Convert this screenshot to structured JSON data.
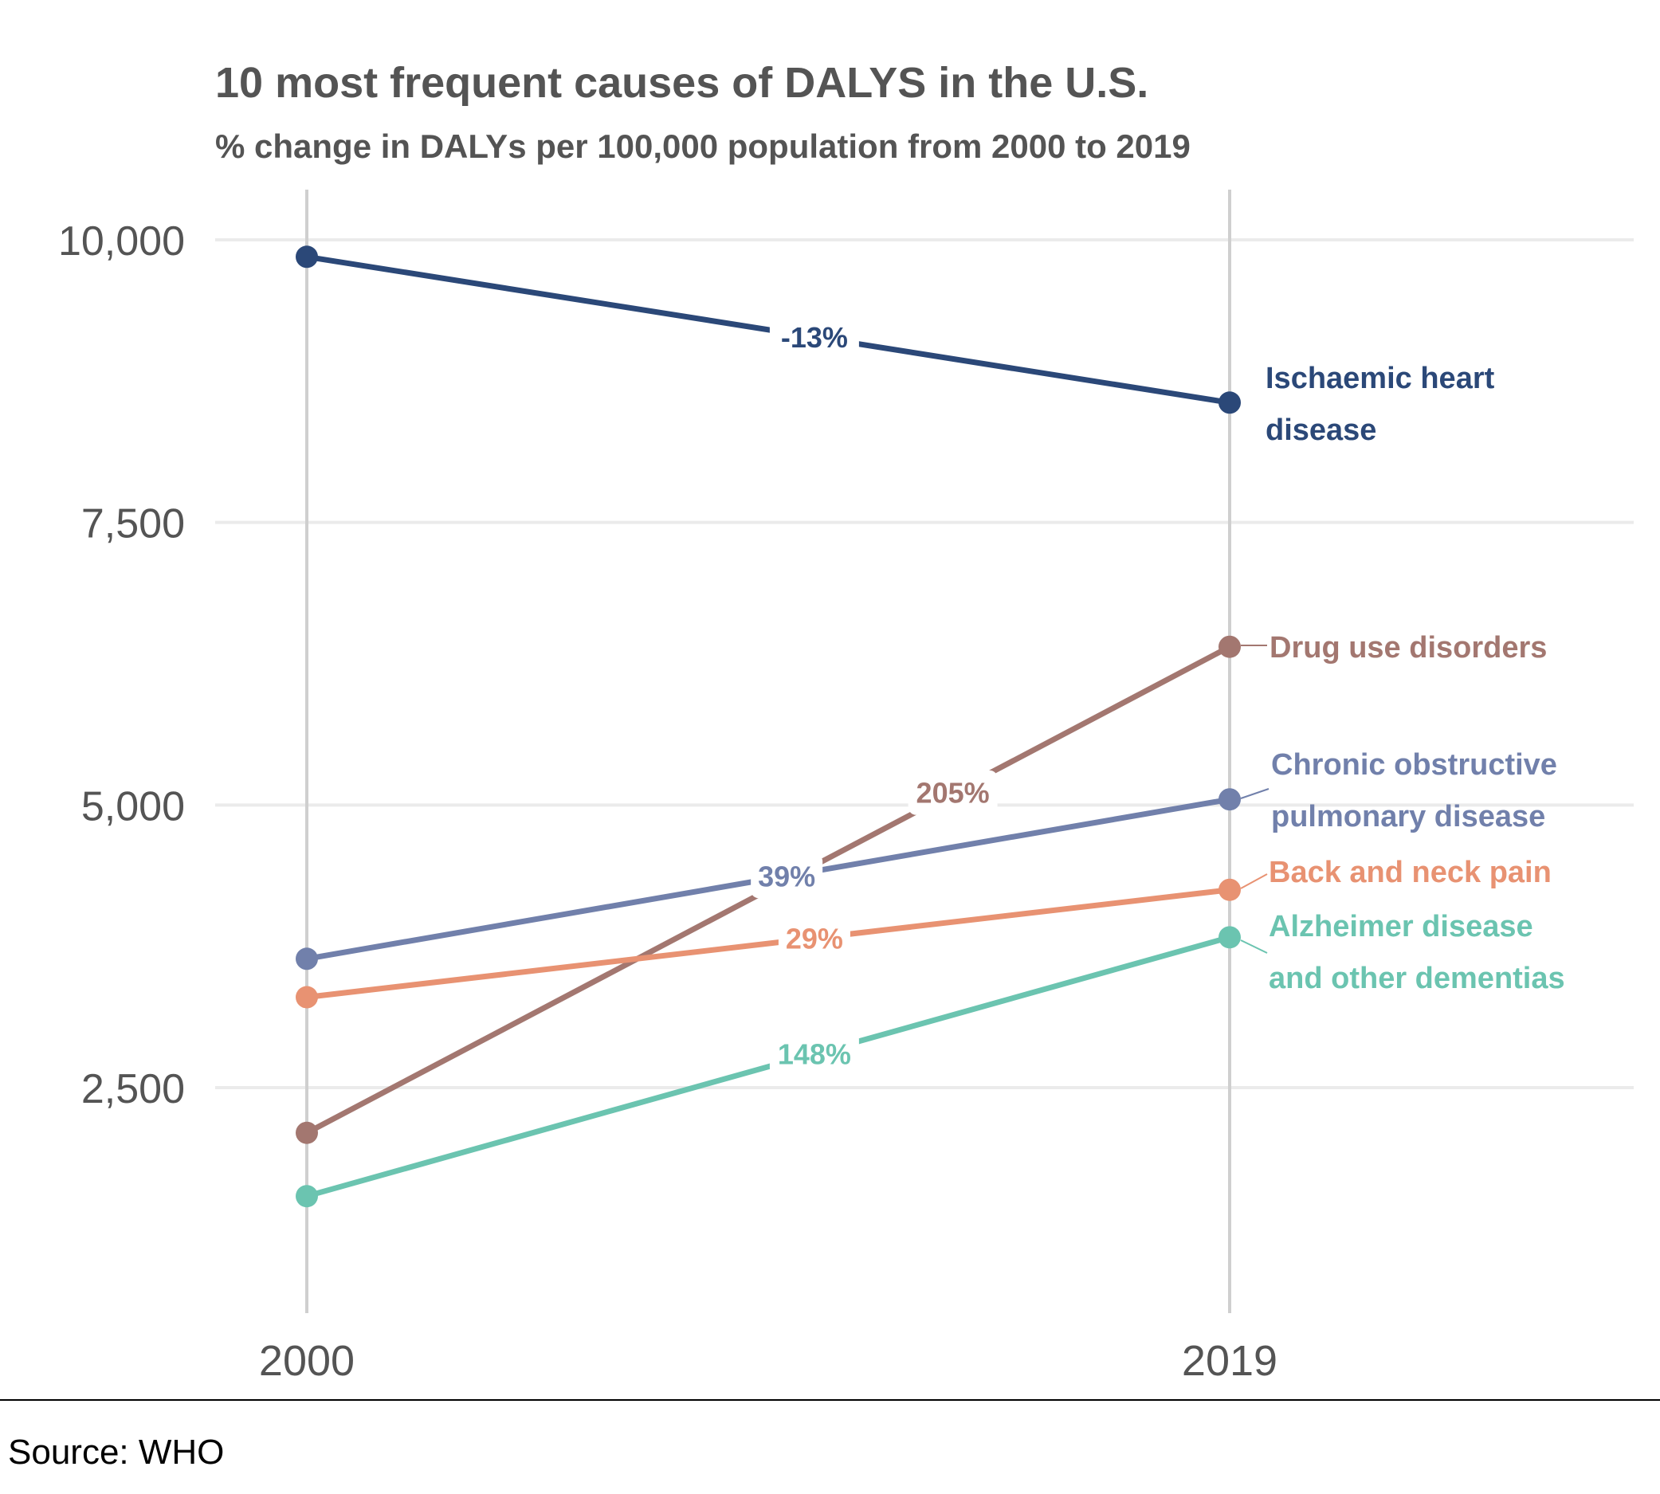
{
  "chart_data": {
    "type": "line",
    "title": "10 most frequent causes of DALYS in the U.S.",
    "subtitle": "% change in DALYs per 100,000 population from 2000 to 2019",
    "x": [
      "2000",
      "2019"
    ],
    "yticks": [
      "10,000",
      "7,500",
      "5,000",
      "2,500"
    ],
    "ytick_values": [
      10000,
      7500,
      5000,
      2500
    ],
    "ylim": [
      900,
      10500
    ],
    "grid": true,
    "series": [
      {
        "name": "Ischaemic heart disease",
        "label_lines": [
          "Ischaemic heart",
          "disease"
        ],
        "values": [
          9850,
          8560
        ],
        "change": "-13%",
        "color": "#2b4878"
      },
      {
        "name": "Drug use disorders",
        "label_lines": [
          "Drug use disorders"
        ],
        "values": [
          2100,
          6400
        ],
        "change": "205%",
        "color": "#a37770"
      },
      {
        "name": "Chronic obstructive pulmonary disease",
        "label_lines": [
          "Chronic obstructive",
          "pulmonary disease"
        ],
        "values": [
          3640,
          5050
        ],
        "change": "39%",
        "color": "#7180ab"
      },
      {
        "name": "Back and neck pain",
        "label_lines": [
          "Back and neck pain"
        ],
        "values": [
          3300,
          4250
        ],
        "change": "29%",
        "color": "#e89272"
      },
      {
        "name": "Alzheimer disease and other dementias",
        "label_lines": [
          "Alzheimer disease",
          "and other dementias"
        ],
        "values": [
          1540,
          3830
        ],
        "change": "148%",
        "color": "#6bc4b0"
      }
    ]
  },
  "source": "Source: WHO"
}
